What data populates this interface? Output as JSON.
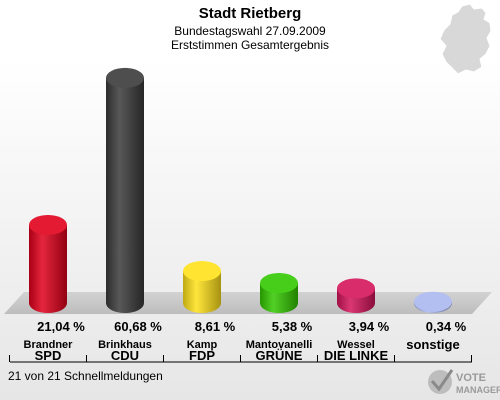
{
  "header": {
    "title": "Stadt Rietberg",
    "subtitle": "Bundestagswahl 27.09.2009",
    "subtitle2": "Erststimmen Gesamtergebnis"
  },
  "footer": {
    "note": "21 von 21 Schnellmeldungen",
    "brand_line1": "VOTE",
    "brand_line2": "MANAGER"
  },
  "chart_data": {
    "type": "bar",
    "ylim": [
      0,
      62
    ],
    "series": [
      {
        "values": [
          21.04,
          60.68,
          8.61,
          5.38,
          3.94,
          0.34
        ]
      }
    ],
    "categories": [
      "SPD",
      "CDU",
      "FDP",
      "GRÜNE",
      "DIE LINKE",
      "sonstige"
    ],
    "candidates": [
      "Brandner",
      "Brinkhaus",
      "Kamp",
      "Mantovanelli",
      "Wessel",
      ""
    ],
    "value_labels": [
      "21,04 %",
      "60,68 %",
      "8,61 %",
      "5,38 %",
      "3,94 %",
      "0,34 %"
    ],
    "colors": [
      "#e0001b",
      "#3a3a3a",
      "#ffe11a",
      "#33c800",
      "#d4145a",
      "#aab8ee"
    ]
  }
}
